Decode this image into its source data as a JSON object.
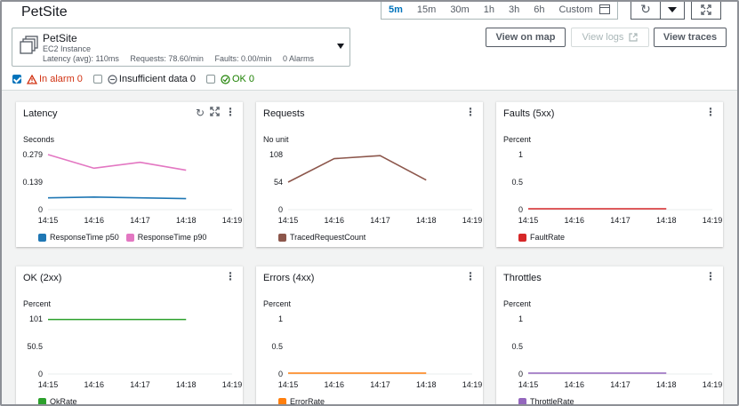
{
  "page": {
    "title": "PetSite"
  },
  "time_range": {
    "options": [
      "5m",
      "15m",
      "30m",
      "1h",
      "3h",
      "6h",
      "Custom"
    ],
    "active": "5m"
  },
  "node": {
    "name": "PetSite",
    "type": "EC2 Instance",
    "latency": "Latency (avg): 110ms",
    "requests": "Requests: 78.60/min",
    "faults": "Faults: 0.00/min",
    "alarms": "0 Alarms"
  },
  "buttons": {
    "view_on_map": "View on map",
    "view_logs": "View logs",
    "view_traces": "View traces"
  },
  "filters": {
    "in_alarm": "In alarm 0",
    "insufficient": "Insufficient data 0",
    "ok": "OK 0"
  },
  "widgets": [
    {
      "title": "Latency",
      "unit": "Seconds",
      "yticks": [
        "0.279",
        "0.139",
        "0"
      ],
      "xticks": [
        "14:15",
        "14:16",
        "14:17",
        "14:18",
        "14:19"
      ],
      "tools": true,
      "chart_data": {
        "type": "line",
        "x": [
          "14:15",
          "14:16",
          "14:17",
          "14:18"
        ],
        "ylim": [
          0,
          0.279
        ],
        "series": [
          {
            "name": "ResponseTime p50",
            "color": "#1f77b4",
            "values": [
              0.06,
              0.064,
              0.06,
              0.056
            ]
          },
          {
            "name": "ResponseTime p90",
            "color": "#e377c2",
            "values": [
              0.279,
              0.21,
              0.24,
              0.2
            ]
          }
        ]
      }
    },
    {
      "title": "Requests",
      "unit": "No unit",
      "yticks": [
        "108",
        "54",
        "0"
      ],
      "xticks": [
        "14:15",
        "14:16",
        "14:17",
        "14:18",
        "14:19"
      ],
      "tools": false,
      "chart_data": {
        "type": "line",
        "x": [
          "14:15",
          "14:16",
          "14:17",
          "14:18"
        ],
        "ylim": [
          0,
          108
        ],
        "series": [
          {
            "name": "TracedRequestCount",
            "color": "#8c564b",
            "values": [
              54,
              100,
              106,
              58
            ]
          }
        ]
      }
    },
    {
      "title": "Faults (5xx)",
      "unit": "Percent",
      "yticks": [
        "1",
        "0.5",
        "0"
      ],
      "xticks": [
        "14:15",
        "14:16",
        "14:17",
        "14:18",
        "14:19"
      ],
      "tools": false,
      "chart_data": {
        "type": "line",
        "x": [
          "14:15",
          "14:16",
          "14:17",
          "14:18"
        ],
        "ylim": [
          0,
          1
        ],
        "series": [
          {
            "name": "FaultRate",
            "color": "#d62728",
            "values": [
              0,
              0,
              0,
              0
            ]
          }
        ]
      }
    },
    {
      "title": "OK (2xx)",
      "unit": "Percent",
      "yticks": [
        "101",
        "50.5",
        "0"
      ],
      "xticks": [
        "14:15",
        "14:16",
        "14:17",
        "14:18",
        "14:19"
      ],
      "tools": false,
      "chart_data": {
        "type": "line",
        "x": [
          "14:15",
          "14:16",
          "14:17",
          "14:18"
        ],
        "ylim": [
          0,
          101
        ],
        "series": [
          {
            "name": "OkRate",
            "color": "#2ca02c",
            "values": [
              100,
              100,
              100,
              100
            ]
          }
        ]
      }
    },
    {
      "title": "Errors (4xx)",
      "unit": "Percent",
      "yticks": [
        "1",
        "0.5",
        "0"
      ],
      "xticks": [
        "14:15",
        "14:16",
        "14:17",
        "14:18",
        "14:19"
      ],
      "tools": false,
      "chart_data": {
        "type": "line",
        "x": [
          "14:15",
          "14:16",
          "14:17",
          "14:18"
        ],
        "ylim": [
          0,
          1
        ],
        "series": [
          {
            "name": "ErrorRate",
            "color": "#ff7f0e",
            "values": [
              0,
              0,
              0,
              0
            ]
          }
        ]
      }
    },
    {
      "title": "Throttles",
      "unit": "Percent",
      "yticks": [
        "1",
        "0.5",
        "0"
      ],
      "xticks": [
        "14:15",
        "14:16",
        "14:17",
        "14:18",
        "14:19"
      ],
      "tools": false,
      "chart_data": {
        "type": "line",
        "x": [
          "14:15",
          "14:16",
          "14:17",
          "14:18"
        ],
        "ylim": [
          0,
          1
        ],
        "series": [
          {
            "name": "ThrottleRate",
            "color": "#9467bd",
            "values": [
              0,
              0,
              0,
              0
            ]
          }
        ]
      }
    }
  ]
}
